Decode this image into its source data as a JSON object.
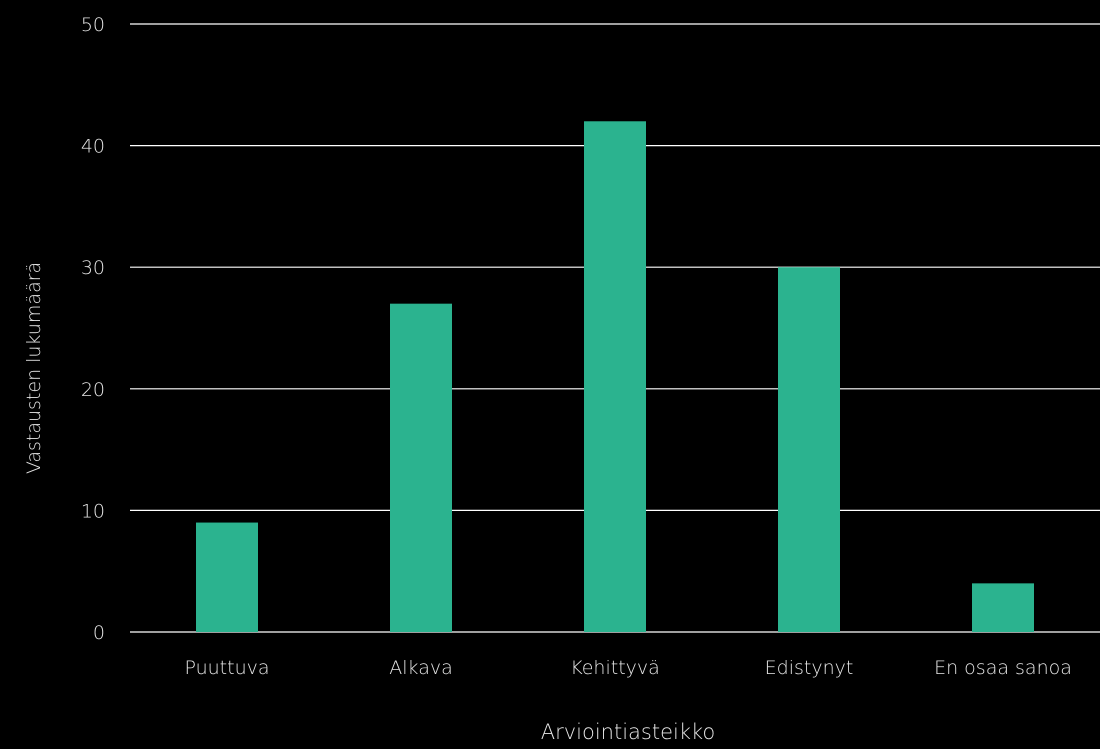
{
  "colors": {
    "background": "#000000",
    "bar": "#2bb38f",
    "grid": "#ffffff",
    "text": "#e6e6e6"
  },
  "chart_data": {
    "type": "bar",
    "categories": [
      "Puuttuva",
      "Alkava",
      "Kehittyvä",
      "Edistynyt",
      "En osaa sanoa"
    ],
    "values": [
      9,
      27,
      42,
      30,
      4
    ],
    "xlabel": "Arviointiasteikko",
    "ylabel": "Vastausten lukumäärä",
    "ylim": [
      0,
      50
    ],
    "yticks": [
      0,
      10,
      20,
      30,
      40,
      50
    ],
    "grid": true,
    "legend": "none"
  }
}
